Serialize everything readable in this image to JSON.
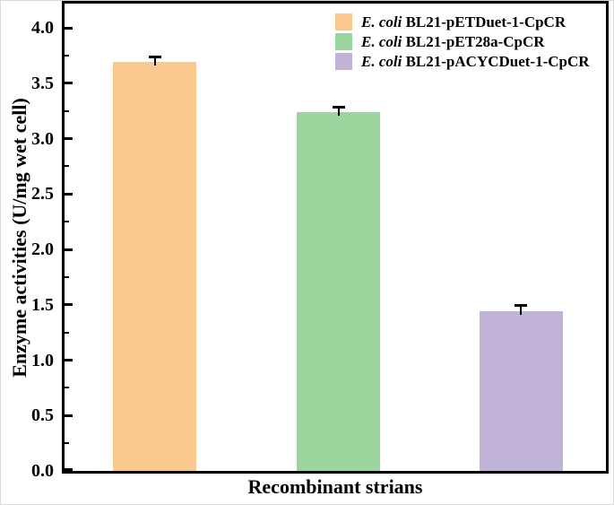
{
  "figure": {
    "background": "#ffffff",
    "frame_color": "#000000",
    "outer_border_color": "#d9d9d9"
  },
  "chart_data": {
    "type": "bar",
    "title": "",
    "xlabel": "Recombinant strians",
    "ylabel": "Enzyme activities (U/mg wet cell)",
    "ylim": [
      0,
      4.22
    ],
    "y_major_ticks": [
      0,
      0.5,
      1,
      1.5,
      2,
      2.5,
      3,
      3.5,
      4
    ],
    "y_tick_labels": [
      "0.0",
      "0.5",
      "1.0",
      "1.5",
      "2.0",
      "2.5",
      "3.0",
      "3.5",
      "4.0"
    ],
    "y_minor_tick_step": 0.25,
    "grid": false,
    "legend_position": "upper-right-inside",
    "categories": [
      "E. coli BL21-pETDuet-1-CpCR",
      "E. coli BL21-pET28a-CpCR",
      "E. coli BL21-pACYCDuet-1-CpCR"
    ],
    "values": [
      3.69,
      3.24,
      1.44
    ],
    "errors": [
      0.05,
      0.05,
      0.06
    ],
    "colors": [
      "#F9C990",
      "#9BD59D",
      "#C1B2D8"
    ],
    "bar_centers_fraction": [
      0.167,
      0.506,
      0.843
    ],
    "bar_width_fraction": 0.154,
    "legend": [
      {
        "italic": "E. coli",
        "rest": "BL21-pETDuet-1-CpCR",
        "color": "#F9C990"
      },
      {
        "italic": "E. coli",
        "rest": "BL21-pET28a-CpCR",
        "color": "#9BD59D"
      },
      {
        "italic": "E. coli",
        "rest": "BL21-pACYCDuet-1-CpCR",
        "color": "#C1B2D8"
      }
    ]
  }
}
